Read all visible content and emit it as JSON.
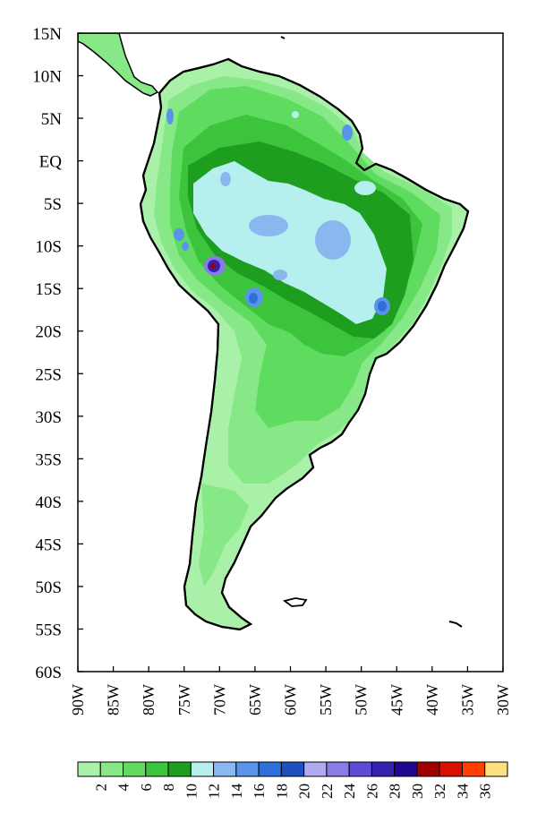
{
  "map": {
    "lat_labels": [
      "15N",
      "10N",
      "5N",
      "EQ",
      "5S",
      "10S",
      "15S",
      "20S",
      "25S",
      "30S",
      "35S",
      "40S",
      "45S",
      "50S",
      "55S",
      "60S"
    ],
    "lon_labels": [
      "90W",
      "85W",
      "80W",
      "75W",
      "70W",
      "65W",
      "60W",
      "55W",
      "50W",
      "45W",
      "40W",
      "35W",
      "30W"
    ],
    "extent": {
      "lon_min": -90,
      "lon_max": -30,
      "lat_min": -60,
      "lat_max": 15
    },
    "level_colors": {
      "2": "#a9f0a9",
      "4": "#86e886",
      "6": "#5fdc5f",
      "8": "#3cc43c",
      "10": "#1e9e1e",
      "12": "#b6f0ee",
      "14": "#8ab8ee",
      "16": "#5a94ea",
      "18": "#2f6fdc",
      "20": "#1e50c0",
      "22": "#b0aaf0",
      "24": "#8a7ce8",
      "26": "#5c4cd8",
      "28": "#3322b0",
      "30": "#200890",
      "32": "#a00000",
      "34": "#d81000",
      "36": "#ff4000"
    }
  },
  "colorbar": {
    "labels": [
      "2",
      "4",
      "6",
      "8",
      "10",
      "12",
      "14",
      "16",
      "18",
      "20",
      "22",
      "24",
      "26",
      "28",
      "30",
      "32",
      "34",
      "36"
    ],
    "colors": [
      "#a9f0a9",
      "#86e886",
      "#5fdc5f",
      "#3cc43c",
      "#1e9e1e",
      "#b6f0ee",
      "#8ab8ee",
      "#5a94ea",
      "#2f6fdc",
      "#1e50c0",
      "#b0aaf0",
      "#8a7ce8",
      "#5c4cd8",
      "#3322b0",
      "#200890",
      "#a00000",
      "#d81000",
      "#ff4000",
      "#ffe080"
    ]
  }
}
